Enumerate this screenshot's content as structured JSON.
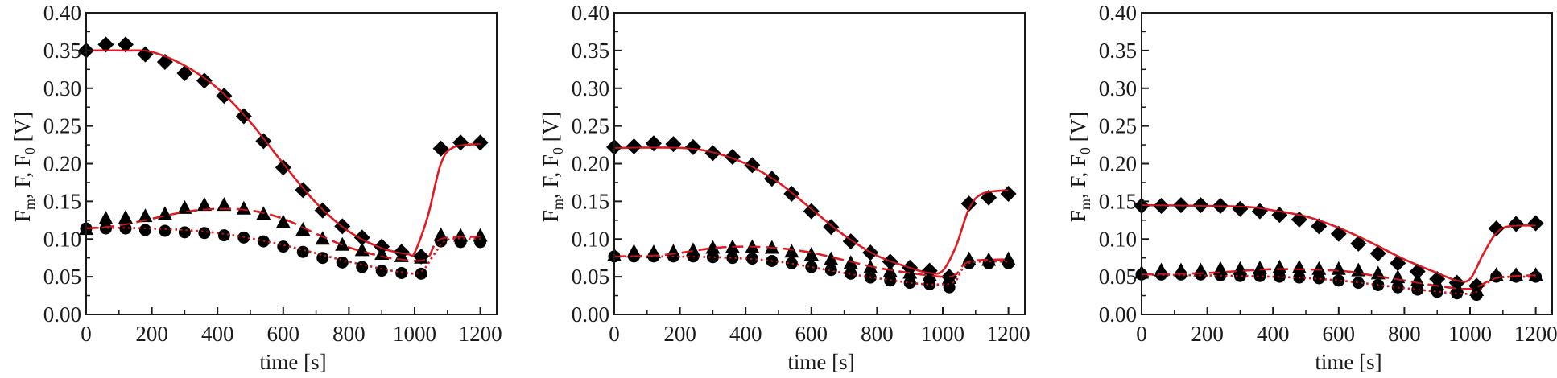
{
  "chart_data": [
    {
      "type": "scatter",
      "title": "",
      "xlabel": "time [s]",
      "ylabel": "Fm, F, F0 [V]",
      "ylabel_parts": [
        "F",
        "m",
        ", F, F",
        "0",
        " [V]"
      ],
      "xlim": [
        0,
        1250
      ],
      "ylim": [
        0,
        0.4
      ],
      "xticks": [
        "0",
        "200",
        "400",
        "600",
        "800",
        "1000",
        "1200"
      ],
      "yticks": [
        "0.00",
        "0.05",
        "0.10",
        "0.15",
        "0.20",
        "0.25",
        "0.30",
        "0.35",
        "0.40"
      ],
      "x": [
        0,
        60,
        120,
        180,
        240,
        300,
        360,
        420,
        480,
        540,
        600,
        660,
        720,
        780,
        840,
        900,
        960,
        1020,
        1080,
        1140,
        1200
      ],
      "series": [
        {
          "name": "Fm",
          "marker": "diamond",
          "values": [
            0.35,
            0.358,
            0.358,
            0.345,
            0.335,
            0.32,
            0.31,
            0.29,
            0.263,
            0.23,
            0.195,
            0.165,
            0.138,
            0.117,
            0.102,
            0.09,
            0.083,
            0.077,
            0.22,
            0.228,
            0.228
          ],
          "fit": {
            "style": "solid",
            "x": [
              0,
              120,
              200,
              300,
              400,
              500,
              600,
              700,
              800,
              900,
              980,
              1000,
              1040,
              1080,
              1120,
              1200
            ],
            "y": [
              0.35,
              0.35,
              0.348,
              0.33,
              0.3,
              0.255,
              0.2,
              0.148,
              0.11,
              0.088,
              0.08,
              0.082,
              0.13,
              0.2,
              0.222,
              0.226
            ]
          }
        },
        {
          "name": "F",
          "marker": "triangle",
          "values": [
            0.113,
            0.127,
            0.128,
            0.13,
            0.133,
            0.141,
            0.145,
            0.145,
            0.14,
            0.133,
            0.122,
            0.112,
            0.1,
            0.092,
            0.085,
            0.08,
            0.077,
            0.075,
            0.105,
            0.104,
            0.104
          ],
          "fit": {
            "style": "dashed",
            "x": [
              0,
              100,
              200,
              300,
              400,
              500,
              600,
              700,
              800,
              900,
              960,
              1000,
              1040,
              1080,
              1200
            ],
            "y": [
              0.114,
              0.118,
              0.127,
              0.136,
              0.14,
              0.138,
              0.127,
              0.107,
              0.089,
              0.077,
              0.073,
              0.071,
              0.075,
              0.1,
              0.103
            ]
          }
        },
        {
          "name": "F0",
          "marker": "circle",
          "values": [
            0.114,
            0.114,
            0.114,
            0.112,
            0.111,
            0.109,
            0.108,
            0.105,
            0.102,
            0.097,
            0.09,
            0.083,
            0.075,
            0.069,
            0.063,
            0.058,
            0.055,
            0.054,
            0.097,
            0.096,
            0.096
          ],
          "fit": {
            "style": "dotted",
            "x": [
              0,
              200,
              400,
              600,
              800,
              960,
              1020,
              1060,
              1100,
              1200
            ],
            "y": [
              0.115,
              0.114,
              0.108,
              0.092,
              0.07,
              0.056,
              0.057,
              0.08,
              0.099,
              0.1
            ]
          }
        }
      ]
    },
    {
      "type": "scatter",
      "title": "",
      "xlabel": "time [s]",
      "ylabel": "Fm, F, F0 [V]",
      "ylabel_parts": [
        "F",
        "m",
        ", F, F",
        "0",
        " [V]"
      ],
      "xlim": [
        0,
        1250
      ],
      "ylim": [
        0,
        0.4
      ],
      "xticks": [
        "0",
        "200",
        "400",
        "600",
        "800",
        "1000",
        "1200"
      ],
      "yticks": [
        "0.00",
        "0.05",
        "0.10",
        "0.15",
        "0.20",
        "0.25",
        "0.30",
        "0.35",
        "0.40"
      ],
      "x": [
        0,
        60,
        120,
        180,
        240,
        300,
        360,
        420,
        480,
        540,
        600,
        660,
        720,
        780,
        840,
        900,
        960,
        1020,
        1080,
        1140,
        1200
      ],
      "series": [
        {
          "name": "Fm",
          "marker": "diamond",
          "values": [
            0.222,
            0.223,
            0.227,
            0.226,
            0.222,
            0.214,
            0.209,
            0.198,
            0.18,
            0.16,
            0.137,
            0.116,
            0.097,
            0.082,
            0.07,
            0.062,
            0.058,
            0.05,
            0.147,
            0.155,
            0.16
          ],
          "fit": {
            "style": "solid",
            "x": [
              0,
              200,
              300,
              400,
              500,
              600,
              700,
              800,
              900,
              960,
              1000,
              1040,
              1080,
              1120,
              1200
            ],
            "y": [
              0.221,
              0.221,
              0.215,
              0.2,
              0.175,
              0.14,
              0.105,
              0.078,
              0.062,
              0.055,
              0.058,
              0.09,
              0.14,
              0.16,
              0.165
            ]
          }
        },
        {
          "name": "F",
          "marker": "triangle",
          "values": [
            0.078,
            0.083,
            0.082,
            0.083,
            0.085,
            0.088,
            0.089,
            0.089,
            0.088,
            0.083,
            0.079,
            0.073,
            0.068,
            0.062,
            0.057,
            0.055,
            0.052,
            0.048,
            0.073,
            0.072,
            0.073
          ],
          "fit": {
            "style": "dashed",
            "x": [
              0,
              150,
              300,
              400,
              500,
              600,
              700,
              800,
              900,
              1000,
              1040,
              1080,
              1200
            ],
            "y": [
              0.077,
              0.079,
              0.088,
              0.09,
              0.088,
              0.082,
              0.072,
              0.062,
              0.055,
              0.05,
              0.053,
              0.07,
              0.073
            ]
          }
        },
        {
          "name": "F0",
          "marker": "circle",
          "values": [
            0.077,
            0.077,
            0.077,
            0.077,
            0.077,
            0.076,
            0.075,
            0.074,
            0.071,
            0.068,
            0.063,
            0.059,
            0.054,
            0.049,
            0.045,
            0.042,
            0.04,
            0.036,
            0.068,
            0.068,
            0.068
          ],
          "fit": {
            "style": "dotted",
            "x": [
              0,
              300,
              500,
              700,
              900,
              1000,
              1040,
              1080,
              1200
            ],
            "y": [
              0.077,
              0.076,
              0.07,
              0.055,
              0.042,
              0.04,
              0.045,
              0.068,
              0.07
            ]
          }
        }
      ]
    },
    {
      "type": "scatter",
      "title": "",
      "xlabel": "time [s]",
      "ylabel": "Fm, F, F0 [V]",
      "ylabel_parts": [
        "F",
        "m",
        ", F, F",
        "0",
        " [V]"
      ],
      "xlim": [
        0,
        1250
      ],
      "ylim": [
        0,
        0.4
      ],
      "xticks": [
        "0",
        "200",
        "400",
        "600",
        "800",
        "1000",
        "1200"
      ],
      "yticks": [
        "0.00",
        "0.05",
        "0.10",
        "0.15",
        "0.20",
        "0.25",
        "0.30",
        "0.35",
        "0.40"
      ],
      "x": [
        0,
        60,
        120,
        180,
        240,
        300,
        360,
        420,
        480,
        540,
        600,
        660,
        720,
        780,
        840,
        900,
        960,
        1020,
        1080,
        1140,
        1200
      ],
      "series": [
        {
          "name": "Fm",
          "marker": "diamond",
          "values": [
            0.144,
            0.144,
            0.145,
            0.145,
            0.144,
            0.14,
            0.137,
            0.132,
            0.126,
            0.117,
            0.107,
            0.094,
            0.081,
            0.068,
            0.057,
            0.047,
            0.042,
            0.038,
            0.114,
            0.12,
            0.121
          ],
          "fit": {
            "style": "solid",
            "x": [
              0,
              300,
              400,
              500,
              600,
              700,
              800,
              900,
              960,
              1000,
              1040,
              1080,
              1120,
              1200
            ],
            "y": [
              0.145,
              0.143,
              0.138,
              0.13,
              0.115,
              0.095,
              0.073,
              0.055,
              0.045,
              0.047,
              0.08,
              0.108,
              0.117,
              0.118
            ]
          }
        },
        {
          "name": "F",
          "marker": "triangle",
          "values": [
            0.055,
            0.058,
            0.058,
            0.058,
            0.06,
            0.06,
            0.061,
            0.062,
            0.062,
            0.06,
            0.06,
            0.058,
            0.054,
            0.049,
            0.045,
            0.04,
            0.036,
            0.032,
            0.052,
            0.052,
            0.052
          ],
          "fit": {
            "style": "dashed",
            "x": [
              0,
              200,
              400,
              600,
              700,
              800,
              900,
              1000,
              1060,
              1100,
              1200
            ],
            "y": [
              0.053,
              0.055,
              0.06,
              0.058,
              0.052,
              0.045,
              0.038,
              0.034,
              0.045,
              0.05,
              0.052
            ]
          }
        },
        {
          "name": "F0",
          "marker": "circle",
          "values": [
            0.053,
            0.053,
            0.053,
            0.053,
            0.052,
            0.051,
            0.051,
            0.05,
            0.049,
            0.048,
            0.045,
            0.042,
            0.039,
            0.036,
            0.033,
            0.03,
            0.028,
            0.026,
            0.05,
            0.05,
            0.05
          ],
          "fit": {
            "style": "dotted",
            "x": [
              0,
              400,
              600,
              800,
              960,
              1020,
              1080,
              1200
            ],
            "y": [
              0.053,
              0.05,
              0.045,
              0.035,
              0.028,
              0.03,
              0.048,
              0.05
            ]
          }
        }
      ]
    }
  ],
  "colors": {
    "fit": "#e01b22",
    "marker": "#000000",
    "axis": "#1a1a1a"
  }
}
